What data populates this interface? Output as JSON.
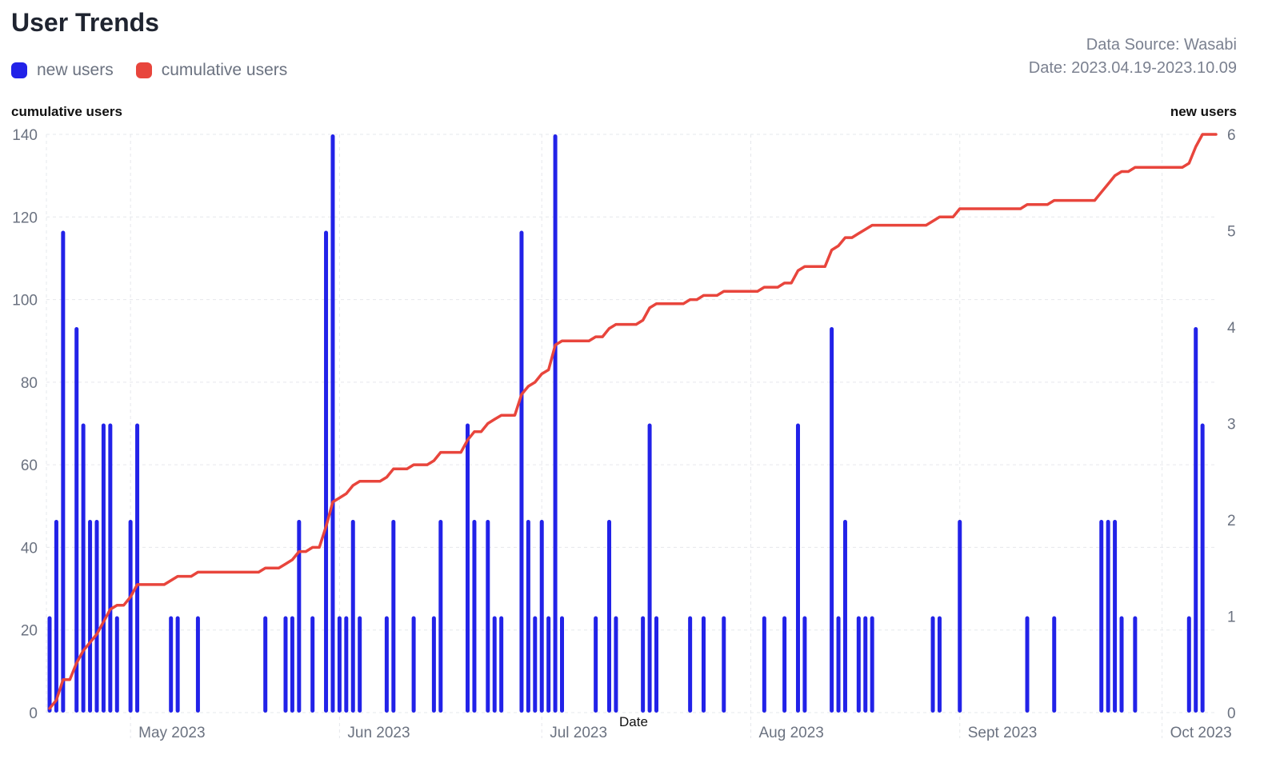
{
  "header": {
    "title": "User Trends",
    "data_source": "Data Source: Wasabi",
    "date_range": "Date: 2023.04.19-2023.10.09"
  },
  "legend": [
    {
      "label": "new users",
      "color": "#2222e8"
    },
    {
      "label": "cumulative users",
      "color": "#e8453c"
    }
  ],
  "chart_data": {
    "type": "bar+line",
    "title": "User Trends",
    "xlabel": "Date",
    "y_left_label": "cumulative users",
    "y_right_label": "new users",
    "y_left_lim": [
      0,
      140
    ],
    "y_left_ticks": [
      0,
      20,
      40,
      60,
      80,
      100,
      120,
      140
    ],
    "y_right_lim": [
      0,
      6
    ],
    "y_right_ticks": [
      0,
      1,
      2,
      3,
      4,
      5,
      6
    ],
    "x_range": [
      "2023-04-19",
      "2023-10-09"
    ],
    "x_ticks": [
      {
        "date": "2023-05-01",
        "label": "May 2023"
      },
      {
        "date": "2023-06-01",
        "label": "Jun 2023"
      },
      {
        "date": "2023-07-01",
        "label": "Jul 2023"
      },
      {
        "date": "2023-08-01",
        "label": "Aug 2023"
      },
      {
        "date": "2023-09-01",
        "label": "Sept 2023"
      },
      {
        "date": "2023-10-01",
        "label": "Oct 2023"
      }
    ],
    "legend_position": "top-left",
    "grid": true,
    "series": [
      {
        "name": "new users",
        "type": "bar",
        "axis": "right",
        "color": "#2222e8",
        "points": [
          {
            "x": "2023-04-19",
            "y": 1
          },
          {
            "x": "2023-04-20",
            "y": 2
          },
          {
            "x": "2023-04-21",
            "y": 5
          },
          {
            "x": "2023-04-23",
            "y": 4
          },
          {
            "x": "2023-04-24",
            "y": 3
          },
          {
            "x": "2023-04-25",
            "y": 2
          },
          {
            "x": "2023-04-26",
            "y": 2
          },
          {
            "x": "2023-04-27",
            "y": 3
          },
          {
            "x": "2023-04-28",
            "y": 3
          },
          {
            "x": "2023-04-29",
            "y": 1
          },
          {
            "x": "2023-05-01",
            "y": 2
          },
          {
            "x": "2023-05-02",
            "y": 3
          },
          {
            "x": "2023-05-07",
            "y": 1
          },
          {
            "x": "2023-05-08",
            "y": 1
          },
          {
            "x": "2023-05-11",
            "y": 1
          },
          {
            "x": "2023-05-21",
            "y": 1
          },
          {
            "x": "2023-05-24",
            "y": 1
          },
          {
            "x": "2023-05-25",
            "y": 1
          },
          {
            "x": "2023-05-26",
            "y": 2
          },
          {
            "x": "2023-05-28",
            "y": 1
          },
          {
            "x": "2023-05-30",
            "y": 5
          },
          {
            "x": "2023-05-31",
            "y": 6
          },
          {
            "x": "2023-06-01",
            "y": 1
          },
          {
            "x": "2023-06-02",
            "y": 1
          },
          {
            "x": "2023-06-03",
            "y": 2
          },
          {
            "x": "2023-06-04",
            "y": 1
          },
          {
            "x": "2023-06-08",
            "y": 1
          },
          {
            "x": "2023-06-09",
            "y": 2
          },
          {
            "x": "2023-06-12",
            "y": 1
          },
          {
            "x": "2023-06-15",
            "y": 1
          },
          {
            "x": "2023-06-16",
            "y": 2
          },
          {
            "x": "2023-06-20",
            "y": 3
          },
          {
            "x": "2023-06-21",
            "y": 2
          },
          {
            "x": "2023-06-23",
            "y": 2
          },
          {
            "x": "2023-06-24",
            "y": 1
          },
          {
            "x": "2023-06-25",
            "y": 1
          },
          {
            "x": "2023-06-28",
            "y": 5
          },
          {
            "x": "2023-06-29",
            "y": 2
          },
          {
            "x": "2023-06-30",
            "y": 1
          },
          {
            "x": "2023-07-01",
            "y": 2
          },
          {
            "x": "2023-07-02",
            "y": 1
          },
          {
            "x": "2023-07-03",
            "y": 6
          },
          {
            "x": "2023-07-04",
            "y": 1
          },
          {
            "x": "2023-07-09",
            "y": 1
          },
          {
            "x": "2023-07-11",
            "y": 2
          },
          {
            "x": "2023-07-12",
            "y": 1
          },
          {
            "x": "2023-07-16",
            "y": 1
          },
          {
            "x": "2023-07-17",
            "y": 3
          },
          {
            "x": "2023-07-18",
            "y": 1
          },
          {
            "x": "2023-07-23",
            "y": 1
          },
          {
            "x": "2023-07-25",
            "y": 1
          },
          {
            "x": "2023-07-28",
            "y": 1
          },
          {
            "x": "2023-08-03",
            "y": 1
          },
          {
            "x": "2023-08-06",
            "y": 1
          },
          {
            "x": "2023-08-08",
            "y": 3
          },
          {
            "x": "2023-08-09",
            "y": 1
          },
          {
            "x": "2023-08-13",
            "y": 4
          },
          {
            "x": "2023-08-14",
            "y": 1
          },
          {
            "x": "2023-08-15",
            "y": 2
          },
          {
            "x": "2023-08-17",
            "y": 1
          },
          {
            "x": "2023-08-18",
            "y": 1
          },
          {
            "x": "2023-08-19",
            "y": 1
          },
          {
            "x": "2023-08-28",
            "y": 1
          },
          {
            "x": "2023-08-29",
            "y": 1
          },
          {
            "x": "2023-09-01",
            "y": 2
          },
          {
            "x": "2023-09-11",
            "y": 1
          },
          {
            "x": "2023-09-15",
            "y": 1
          },
          {
            "x": "2023-09-22",
            "y": 2
          },
          {
            "x": "2023-09-23",
            "y": 2
          },
          {
            "x": "2023-09-24",
            "y": 2
          },
          {
            "x": "2023-09-25",
            "y": 1
          },
          {
            "x": "2023-09-27",
            "y": 1
          },
          {
            "x": "2023-10-05",
            "y": 1
          },
          {
            "x": "2023-10-06",
            "y": 4
          },
          {
            "x": "2023-10-07",
            "y": 3
          }
        ]
      },
      {
        "name": "cumulative users",
        "type": "line",
        "axis": "left",
        "color": "#e8453c",
        "points": [
          {
            "x": "2023-04-19",
            "y": 1
          },
          {
            "x": "2023-04-20",
            "y": 3
          },
          {
            "x": "2023-04-21",
            "y": 8
          },
          {
            "x": "2023-04-22",
            "y": 8
          },
          {
            "x": "2023-04-23",
            "y": 12
          },
          {
            "x": "2023-04-24",
            "y": 15
          },
          {
            "x": "2023-04-25",
            "y": 17
          },
          {
            "x": "2023-04-26",
            "y": 19
          },
          {
            "x": "2023-04-27",
            "y": 22
          },
          {
            "x": "2023-04-28",
            "y": 25
          },
          {
            "x": "2023-04-29",
            "y": 26
          },
          {
            "x": "2023-04-30",
            "y": 26
          },
          {
            "x": "2023-05-01",
            "y": 28
          },
          {
            "x": "2023-05-02",
            "y": 31
          },
          {
            "x": "2023-05-06",
            "y": 31
          },
          {
            "x": "2023-05-07",
            "y": 32
          },
          {
            "x": "2023-05-08",
            "y": 33
          },
          {
            "x": "2023-05-10",
            "y": 33
          },
          {
            "x": "2023-05-11",
            "y": 34
          },
          {
            "x": "2023-05-20",
            "y": 34
          },
          {
            "x": "2023-05-21",
            "y": 35
          },
          {
            "x": "2023-05-23",
            "y": 35
          },
          {
            "x": "2023-05-24",
            "y": 36
          },
          {
            "x": "2023-05-25",
            "y": 37
          },
          {
            "x": "2023-05-26",
            "y": 39
          },
          {
            "x": "2023-05-27",
            "y": 39
          },
          {
            "x": "2023-05-28",
            "y": 40
          },
          {
            "x": "2023-05-29",
            "y": 40
          },
          {
            "x": "2023-05-30",
            "y": 45
          },
          {
            "x": "2023-05-31",
            "y": 51
          },
          {
            "x": "2023-06-01",
            "y": 52
          },
          {
            "x": "2023-06-02",
            "y": 53
          },
          {
            "x": "2023-06-03",
            "y": 55
          },
          {
            "x": "2023-06-04",
            "y": 56
          },
          {
            "x": "2023-06-07",
            "y": 56
          },
          {
            "x": "2023-06-08",
            "y": 57
          },
          {
            "x": "2023-06-09",
            "y": 59
          },
          {
            "x": "2023-06-11",
            "y": 59
          },
          {
            "x": "2023-06-12",
            "y": 60
          },
          {
            "x": "2023-06-14",
            "y": 60
          },
          {
            "x": "2023-06-15",
            "y": 61
          },
          {
            "x": "2023-06-16",
            "y": 63
          },
          {
            "x": "2023-06-19",
            "y": 63
          },
          {
            "x": "2023-06-20",
            "y": 66
          },
          {
            "x": "2023-06-21",
            "y": 68
          },
          {
            "x": "2023-06-22",
            "y": 68
          },
          {
            "x": "2023-06-23",
            "y": 70
          },
          {
            "x": "2023-06-24",
            "y": 71
          },
          {
            "x": "2023-06-25",
            "y": 72
          },
          {
            "x": "2023-06-27",
            "y": 72
          },
          {
            "x": "2023-06-28",
            "y": 77
          },
          {
            "x": "2023-06-29",
            "y": 79
          },
          {
            "x": "2023-06-30",
            "y": 80
          },
          {
            "x": "2023-07-01",
            "y": 82
          },
          {
            "x": "2023-07-02",
            "y": 83
          },
          {
            "x": "2023-07-03",
            "y": 89
          },
          {
            "x": "2023-07-04",
            "y": 90
          },
          {
            "x": "2023-07-08",
            "y": 90
          },
          {
            "x": "2023-07-09",
            "y": 91
          },
          {
            "x": "2023-07-10",
            "y": 91
          },
          {
            "x": "2023-07-11",
            "y": 93
          },
          {
            "x": "2023-07-12",
            "y": 94
          },
          {
            "x": "2023-07-15",
            "y": 94
          },
          {
            "x": "2023-07-16",
            "y": 95
          },
          {
            "x": "2023-07-17",
            "y": 98
          },
          {
            "x": "2023-07-18",
            "y": 99
          },
          {
            "x": "2023-07-22",
            "y": 99
          },
          {
            "x": "2023-07-23",
            "y": 100
          },
          {
            "x": "2023-07-24",
            "y": 100
          },
          {
            "x": "2023-07-25",
            "y": 101
          },
          {
            "x": "2023-07-27",
            "y": 101
          },
          {
            "x": "2023-07-28",
            "y": 102
          },
          {
            "x": "2023-08-02",
            "y": 102
          },
          {
            "x": "2023-08-03",
            "y": 103
          },
          {
            "x": "2023-08-05",
            "y": 103
          },
          {
            "x": "2023-08-06",
            "y": 104
          },
          {
            "x": "2023-08-07",
            "y": 104
          },
          {
            "x": "2023-08-08",
            "y": 107
          },
          {
            "x": "2023-08-09",
            "y": 108
          },
          {
            "x": "2023-08-12",
            "y": 108
          },
          {
            "x": "2023-08-13",
            "y": 112
          },
          {
            "x": "2023-08-14",
            "y": 113
          },
          {
            "x": "2023-08-15",
            "y": 115
          },
          {
            "x": "2023-08-16",
            "y": 115
          },
          {
            "x": "2023-08-17",
            "y": 116
          },
          {
            "x": "2023-08-18",
            "y": 117
          },
          {
            "x": "2023-08-19",
            "y": 118
          },
          {
            "x": "2023-08-27",
            "y": 118
          },
          {
            "x": "2023-08-28",
            "y": 119
          },
          {
            "x": "2023-08-29",
            "y": 120
          },
          {
            "x": "2023-08-31",
            "y": 120
          },
          {
            "x": "2023-09-01",
            "y": 122
          },
          {
            "x": "2023-09-10",
            "y": 122
          },
          {
            "x": "2023-09-11",
            "y": 123
          },
          {
            "x": "2023-09-14",
            "y": 123
          },
          {
            "x": "2023-09-15",
            "y": 124
          },
          {
            "x": "2023-09-21",
            "y": 124
          },
          {
            "x": "2023-09-22",
            "y": 126
          },
          {
            "x": "2023-09-23",
            "y": 128
          },
          {
            "x": "2023-09-24",
            "y": 130
          },
          {
            "x": "2023-09-25",
            "y": 131
          },
          {
            "x": "2023-09-26",
            "y": 131
          },
          {
            "x": "2023-09-27",
            "y": 132
          },
          {
            "x": "2023-10-04",
            "y": 132
          },
          {
            "x": "2023-10-05",
            "y": 133
          },
          {
            "x": "2023-10-06",
            "y": 137
          },
          {
            "x": "2023-10-07",
            "y": 140
          },
          {
            "x": "2023-10-09",
            "y": 140
          }
        ]
      }
    ]
  }
}
